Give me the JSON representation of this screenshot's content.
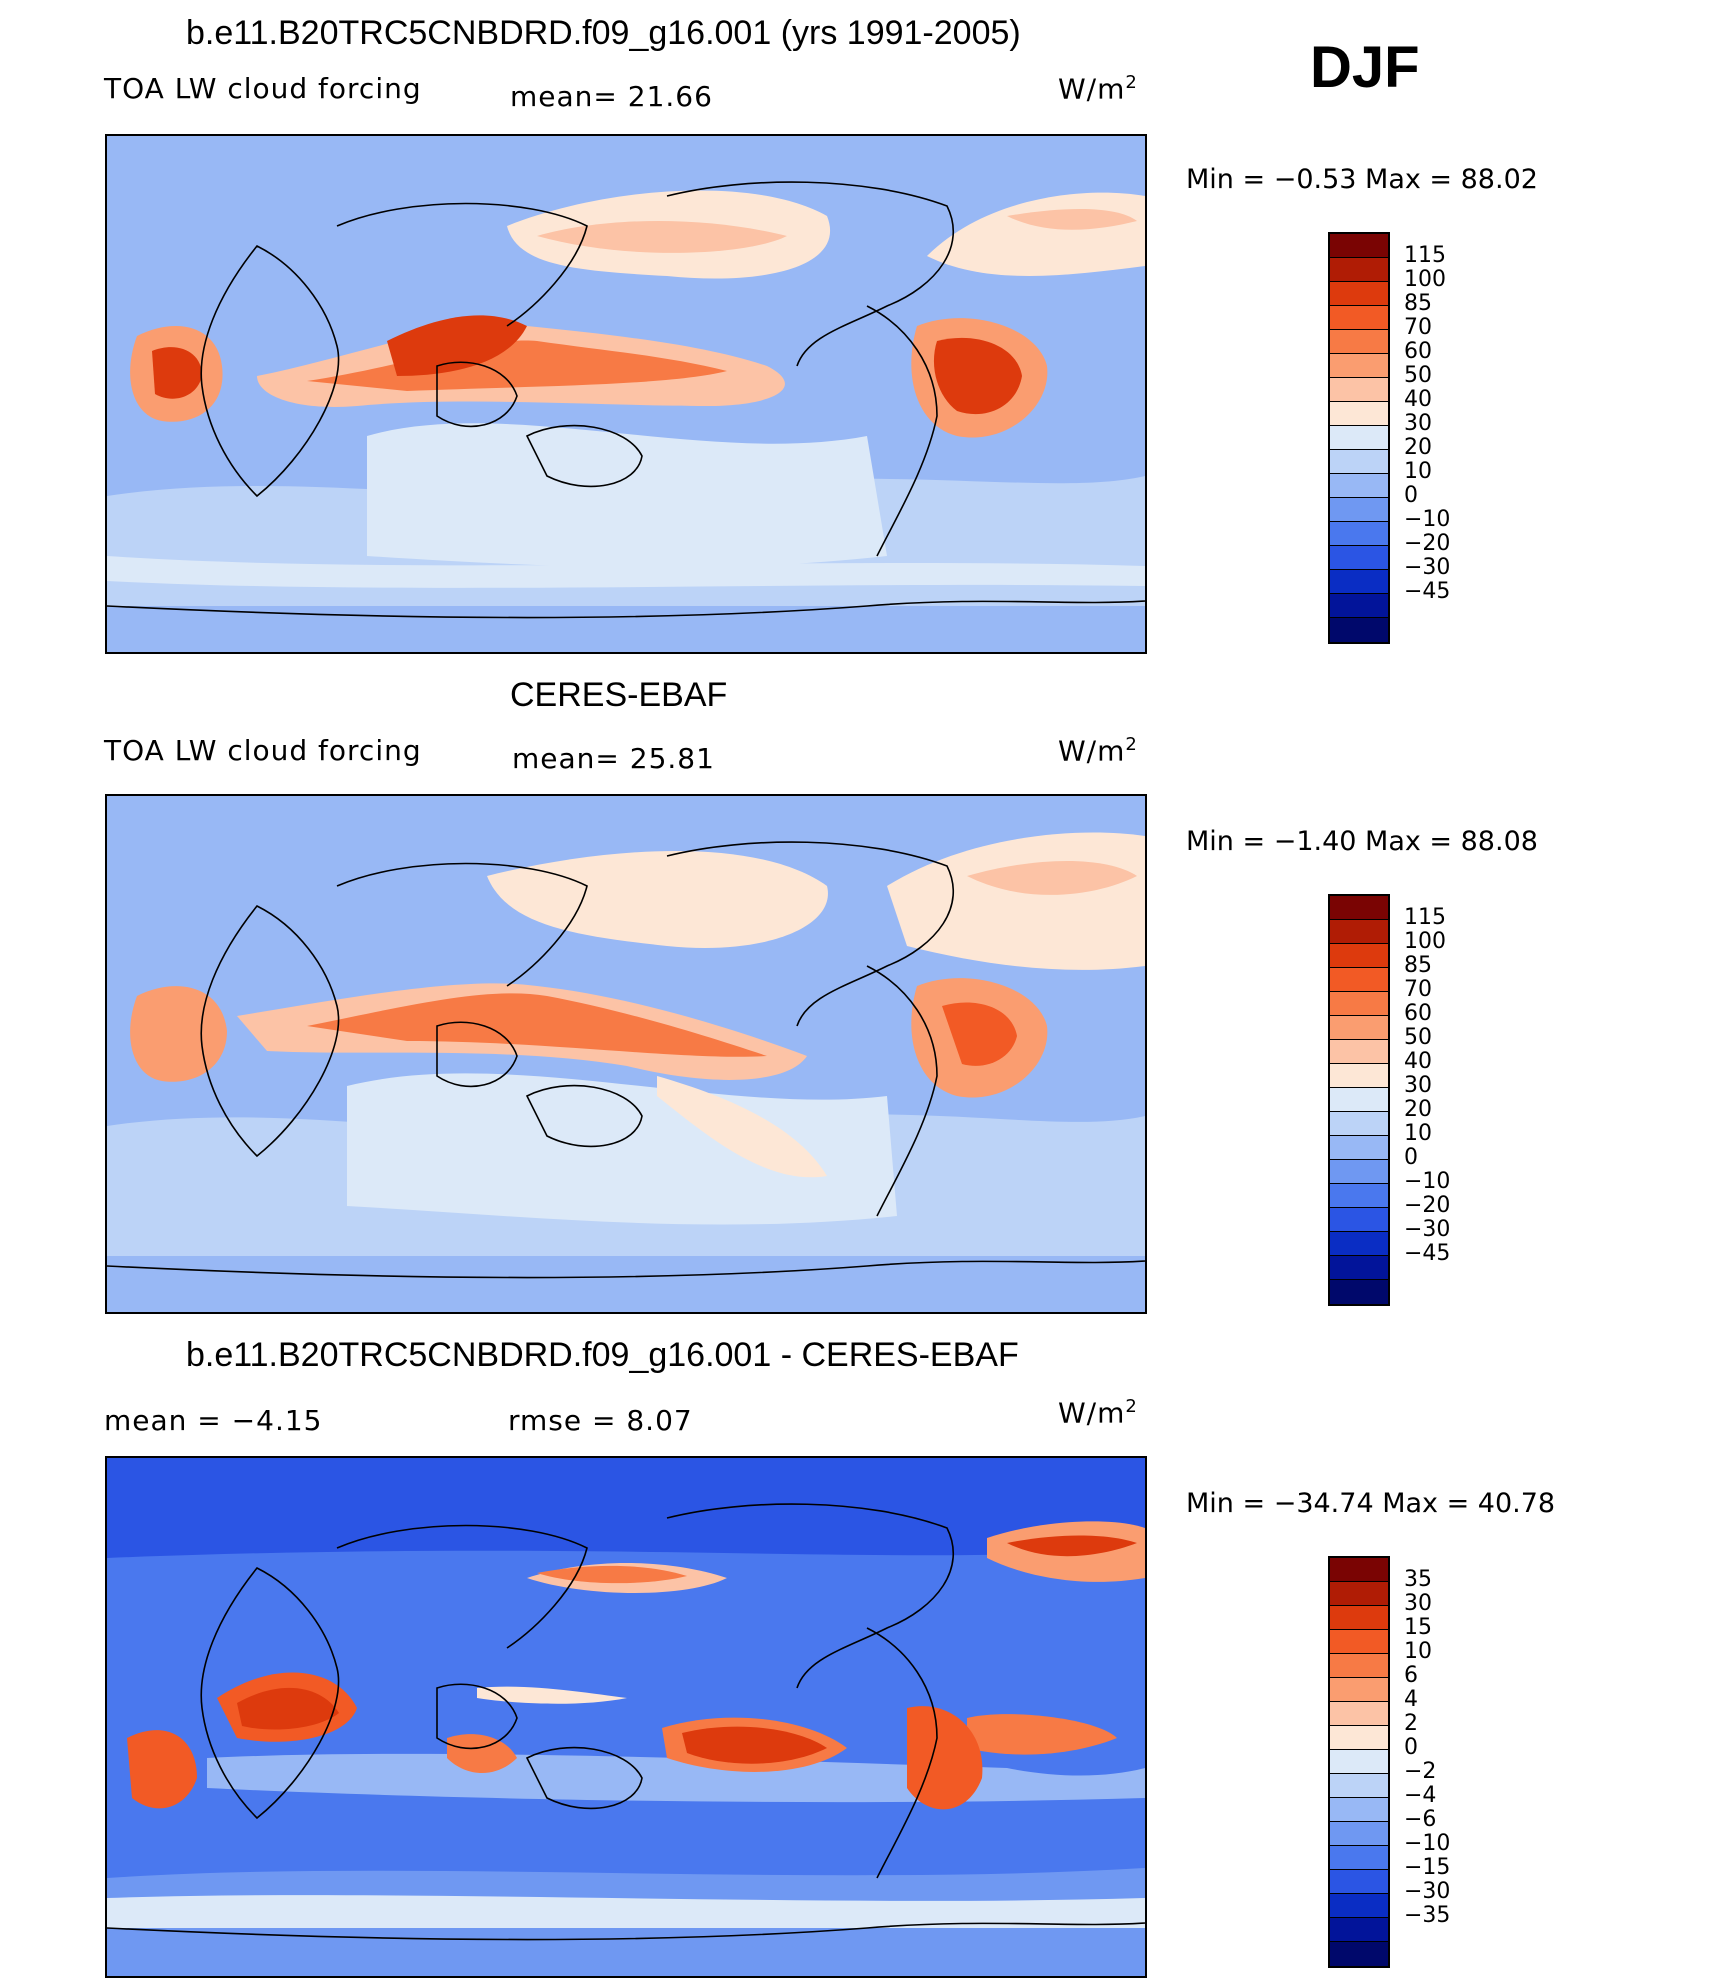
{
  "season": "DJF",
  "panels": [
    {
      "title": "b.e11.B20TRC5CNBDRD.f09_g16.001 (yrs 1991-2005)",
      "left_label": "TOA LW cloud forcing",
      "mid_label": "mean=   21.66",
      "units": "W/m",
      "units_sup": "2",
      "minmax": "Min =   −0.53  Max =    88.02",
      "colorbar_labels": [
        "115",
        "100",
        "85",
        "70",
        "60",
        "50",
        "40",
        "30",
        "20",
        "10",
        "0",
        "−10",
        "−20",
        "−30",
        "−45"
      ]
    },
    {
      "title": "CERES-EBAF",
      "left_label": "TOA LW cloud forcing",
      "mid_label": "mean=   25.81",
      "units": "W/m",
      "units_sup": "2",
      "minmax": "Min =   −1.40  Max =    88.08",
      "colorbar_labels": [
        "115",
        "100",
        "85",
        "70",
        "60",
        "50",
        "40",
        "30",
        "20",
        "10",
        "0",
        "−10",
        "−20",
        "−30",
        "−45"
      ]
    },
    {
      "title": "b.e11.B20TRC5CNBDRD.f09_g16.001 - CERES-EBAF",
      "left_label": "mean  =   −4.15",
      "mid_label": "rmse  =     8.07",
      "units": "W/m",
      "units_sup": "2",
      "minmax": "Min  = −34.74  Max  =    40.78",
      "colorbar_labels": [
        "35",
        "30",
        "15",
        "10",
        "6",
        "4",
        "2",
        "0",
        "−2",
        "−4",
        "−6",
        "−10",
        "−15",
        "−30",
        "−35"
      ]
    }
  ],
  "colors": {
    "abs_scale": [
      "#7a0403",
      "#b01c05",
      "#dd3a0d",
      "#f25a25",
      "#f77a45",
      "#fa9d70",
      "#fcc3a6",
      "#fde7d6",
      "#dce9f8",
      "#bcd3f7",
      "#98b8f5",
      "#6f98f2",
      "#4a78ee",
      "#2b55e4",
      "#0a2dc4",
      "#02149a",
      "#00086b"
    ],
    "diff_scale": [
      "#7a0403",
      "#b01c05",
      "#dd3a0d",
      "#f25a25",
      "#f77a45",
      "#fa9d70",
      "#fcc3a6",
      "#fde7d6",
      "#dce9f8",
      "#bcd3f7",
      "#98b8f5",
      "#6f98f2",
      "#4a78ee",
      "#2b55e4",
      "#0a2dc4",
      "#02149a",
      "#00086b"
    ],
    "coast": "#000000"
  }
}
